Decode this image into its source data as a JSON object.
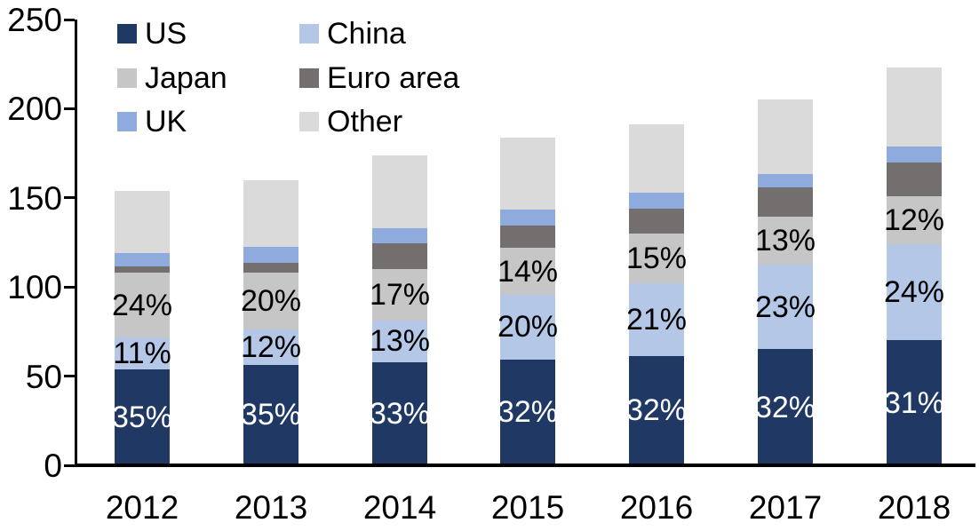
{
  "chart_data": {
    "type": "bar",
    "subtype": "stacked-column",
    "title": "",
    "xlabel": "",
    "ylabel": "",
    "categories": [
      "2012",
      "2013",
      "2014",
      "2015",
      "2016",
      "2017",
      "2018"
    ],
    "series": [
      {
        "name": "US",
        "color": "#1f3864",
        "values": [
          54,
          56.5,
          58,
          59.5,
          61.5,
          65,
          70
        ],
        "labels": [
          "35%",
          "35%",
          "33%",
          "32%",
          "32%",
          "32%",
          "31%"
        ],
        "label_color": "#ffffff"
      },
      {
        "name": "China",
        "color": "#b4c7e7",
        "values": [
          17.5,
          19.5,
          23,
          36,
          40.5,
          47.5,
          54
        ],
        "labels": [
          "11%",
          "12%",
          "13%",
          "20%",
          "21%",
          "23%",
          "24%"
        ],
        "label_color": "#000000"
      },
      {
        "name": "Japan",
        "color": "#c6c6c6",
        "values": [
          36.5,
          32,
          29,
          26.5,
          28,
          27,
          27
        ],
        "labels": [
          "24%",
          "20%",
          "17%",
          "14%",
          "15%",
          "13%",
          "12%"
        ],
        "label_color": "#000000"
      },
      {
        "name": "Euro area",
        "color": "#736f6f",
        "values": [
          3.5,
          5.5,
          14.5,
          12.5,
          14,
          16.5,
          19
        ],
        "labels": null,
        "label_color": null
      },
      {
        "name": "UK",
        "color": "#8faadc",
        "values": [
          7.5,
          9,
          8.5,
          9,
          9,
          7.5,
          9
        ],
        "labels": null,
        "label_color": null
      },
      {
        "name": "Other",
        "color": "#dadada",
        "values": [
          35,
          37.5,
          41,
          40.5,
          38,
          41.5,
          44
        ],
        "labels": null,
        "label_color": null
      }
    ],
    "totals": [
      154,
      160,
      174,
      184,
      191,
      205,
      223
    ],
    "y_axis": {
      "min": 0,
      "max": 250,
      "tick_step": 50,
      "tick_labels": [
        "0",
        "50",
        "100",
        "150",
        "200",
        "250"
      ]
    },
    "legend": {
      "position": "top-left",
      "columns": 2,
      "entries": [
        "US",
        "China",
        "Japan",
        "Euro area",
        "UK",
        "Other"
      ]
    },
    "grid": "off",
    "axis_color": "#000000"
  }
}
